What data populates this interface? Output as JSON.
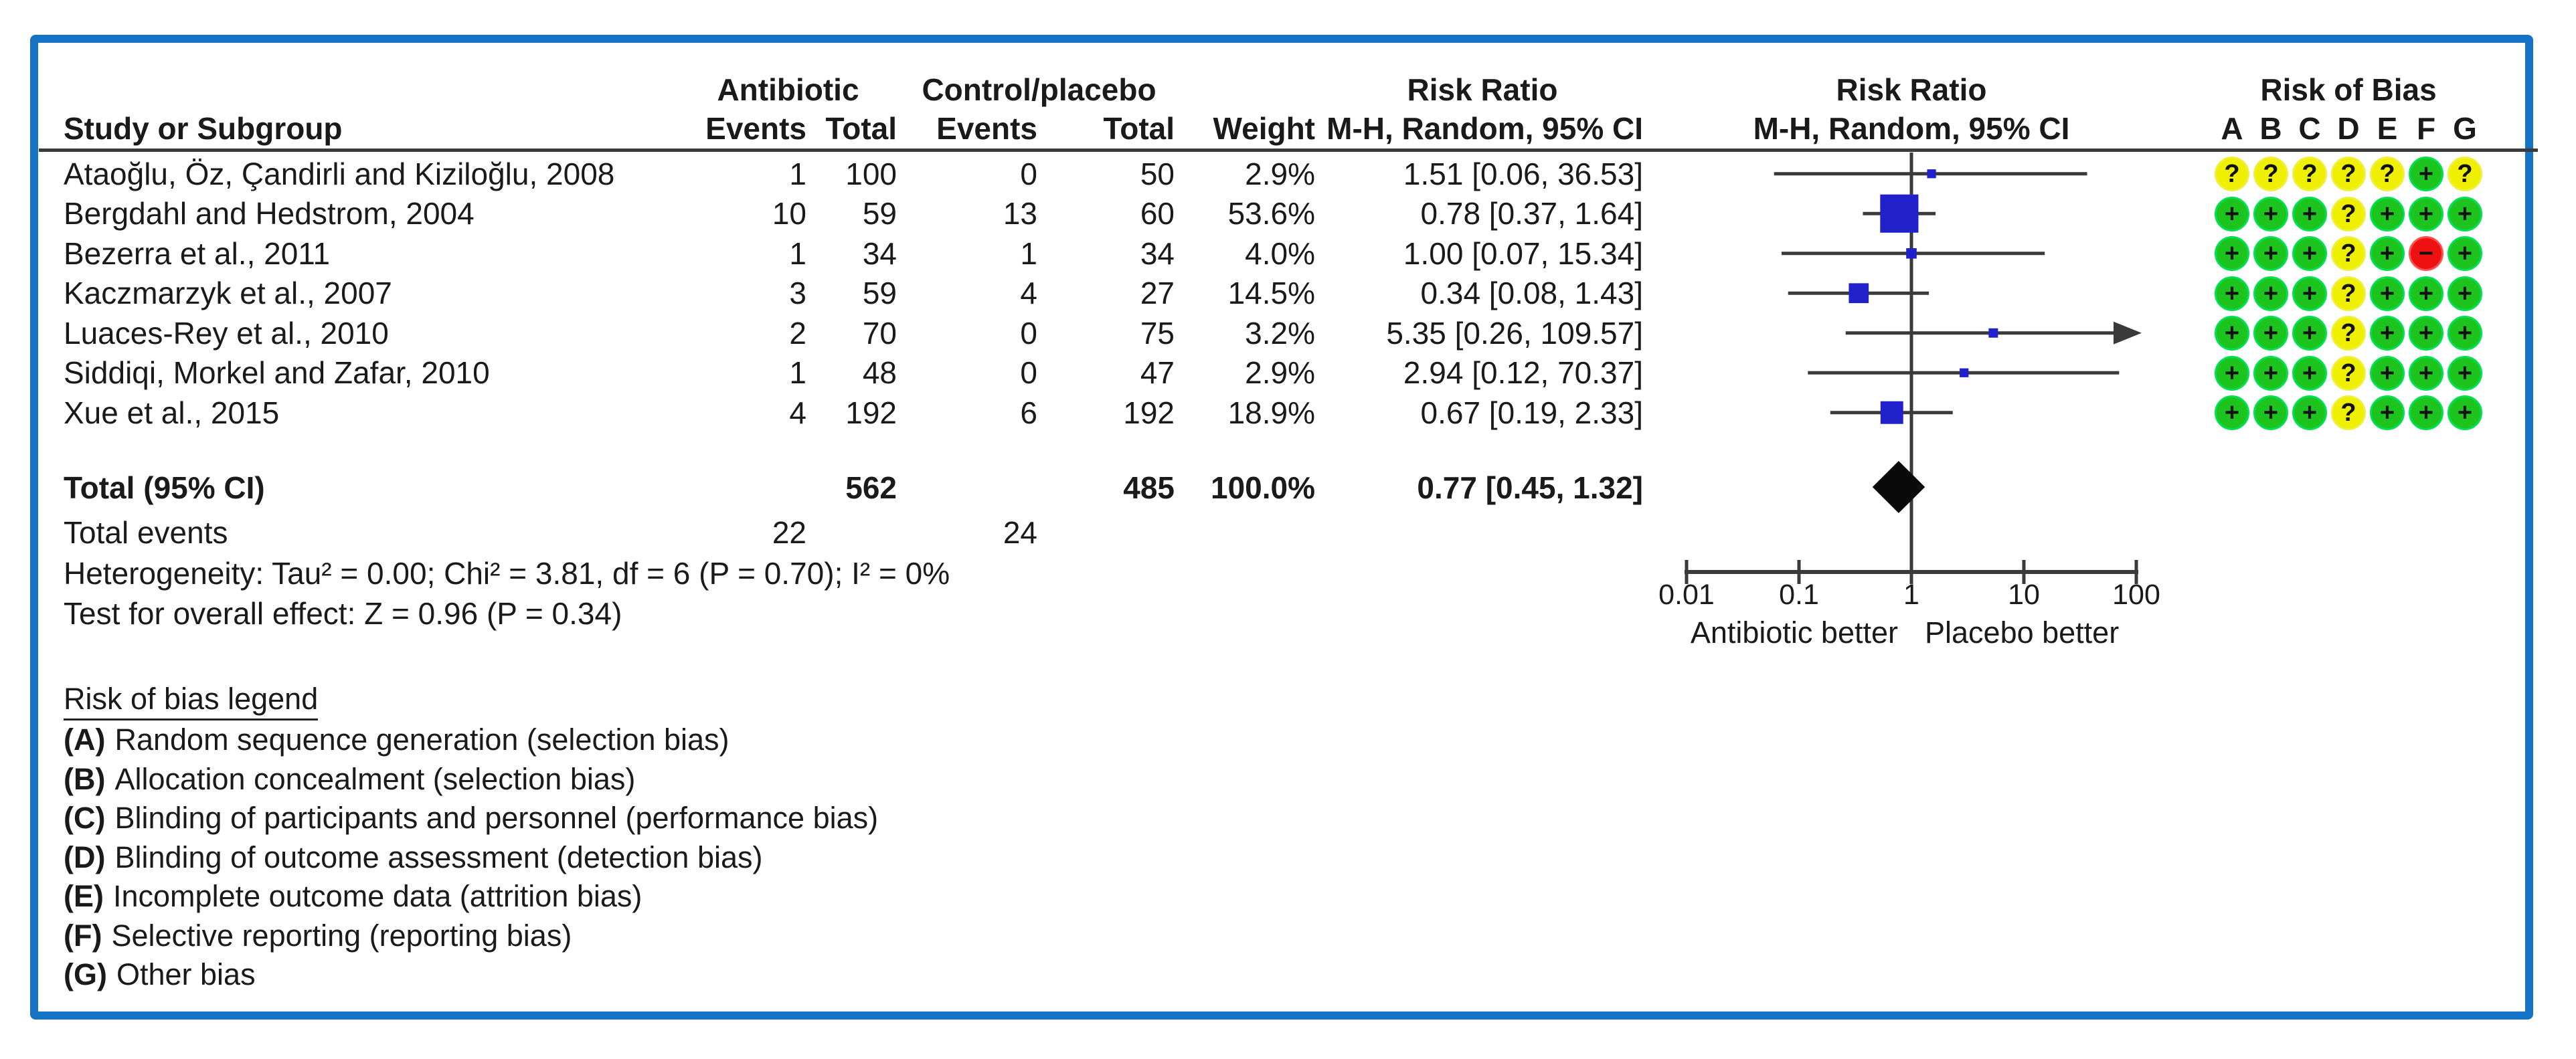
{
  "header": {
    "study_col": "Study or Subgroup",
    "group_antibiotic": "Antibiotic",
    "group_control": "Control/placebo",
    "events": "Events",
    "total": "Total",
    "weight": "Weight",
    "rr_text_title": "Risk Ratio",
    "rr_text_sub": "M-H, Random, 95% CI",
    "rr_plot_title": "Risk Ratio",
    "rr_plot_sub": "M-H, Random, 95% CI",
    "rob_title": "Risk of Bias",
    "rob_cols": [
      "A",
      "B",
      "C",
      "D",
      "E",
      "F",
      "G"
    ]
  },
  "studies": [
    {
      "name": "Ataoğlu, Öz, Çandirli and Kiziloğlu, 2008",
      "e1": "1",
      "t1": "100",
      "e2": "0",
      "t2": "50",
      "weight": "2.9%",
      "rr_text": "1.51 [0.06, 36.53]",
      "rob": [
        "?",
        "?",
        "?",
        "?",
        "?",
        "+",
        "?"
      ]
    },
    {
      "name": "Bergdahl and Hedstrom, 2004",
      "e1": "10",
      "t1": "59",
      "e2": "13",
      "t2": "60",
      "weight": "53.6%",
      "rr_text": "0.78 [0.37, 1.64]",
      "rob": [
        "+",
        "+",
        "+",
        "?",
        "+",
        "+",
        "+"
      ]
    },
    {
      "name": "Bezerra et al., 2011",
      "e1": "1",
      "t1": "34",
      "e2": "1",
      "t2": "34",
      "weight": "4.0%",
      "rr_text": "1.00 [0.07, 15.34]",
      "rob": [
        "+",
        "+",
        "+",
        "?",
        "+",
        "-",
        "+"
      ]
    },
    {
      "name": "Kaczmarzyk et al., 2007",
      "e1": "3",
      "t1": "59",
      "e2": "4",
      "t2": "27",
      "weight": "14.5%",
      "rr_text": "0.34 [0.08, 1.43]",
      "rob": [
        "+",
        "+",
        "+",
        "?",
        "+",
        "+",
        "+"
      ]
    },
    {
      "name": "Luaces-Rey et al., 2010",
      "e1": "2",
      "t1": "70",
      "e2": "0",
      "t2": "75",
      "weight": "3.2%",
      "rr_text": "5.35 [0.26, 109.57]",
      "rob": [
        "+",
        "+",
        "+",
        "?",
        "+",
        "+",
        "+"
      ]
    },
    {
      "name": "Siddiqi, Morkel and Zafar, 2010",
      "e1": "1",
      "t1": "48",
      "e2": "0",
      "t2": "47",
      "weight": "2.9%",
      "rr_text": "2.94 [0.12, 70.37]",
      "rob": [
        "+",
        "+",
        "+",
        "?",
        "+",
        "+",
        "+"
      ]
    },
    {
      "name": "Xue et al., 2015",
      "e1": "4",
      "t1": "192",
      "e2": "6",
      "t2": "192",
      "weight": "18.9%",
      "rr_text": "0.67 [0.19, 2.33]",
      "rob": [
        "+",
        "+",
        "+",
        "?",
        "+",
        "+",
        "+"
      ]
    }
  ],
  "totals": {
    "label": "Total (95% CI)",
    "t1": "562",
    "t2": "485",
    "weight": "100.0%",
    "rr_text": "0.77 [0.45, 1.32]",
    "events_label": "Total events",
    "e1": "22",
    "e2": "24",
    "heterogeneity": "Heterogeneity: Tau² = 0.00; Chi² = 3.81, df = 6 (P = 0.70); I² = 0%",
    "overall_effect": "Test for overall effect: Z = 0.96 (P = 0.34)"
  },
  "axis": {
    "ticks": [
      "0.01",
      "0.1",
      "1",
      "10",
      "100"
    ],
    "tick_values": [
      0.01,
      0.1,
      1,
      10,
      100
    ],
    "left_label": "Antibiotic better",
    "right_label": "Placebo better"
  },
  "legend": {
    "title": "Risk of bias legend",
    "items": [
      {
        "key": "(A)",
        "text": "Random sequence generation (selection bias)"
      },
      {
        "key": "(B)",
        "text": "Allocation concealment (selection bias)"
      },
      {
        "key": "(C)",
        "text": "Blinding of participants and personnel (performance bias)"
      },
      {
        "key": "(D)",
        "text": "Blinding of outcome assessment (detection bias)"
      },
      {
        "key": "(E)",
        "text": "Incomplete outcome data (attrition bias)"
      },
      {
        "key": "(F)",
        "text": "Selective reporting (reporting bias)"
      },
      {
        "key": "(G)",
        "text": "Other bias"
      }
    ]
  },
  "colors": {
    "frame_border": "#1572c4",
    "square": "#2121cc",
    "diamond": "#0a0a0a",
    "line": "#3a3a3a",
    "rob_yes": "#1ec41e",
    "rob_unclear": "#efef00",
    "rob_no": "#ee1111"
  },
  "chart_data": {
    "type": "scatter",
    "variant": "forest-plot",
    "title": "Risk Ratio M-H, Random, 95% CI",
    "x_scale": "log10",
    "xlim": [
      0.01,
      100
    ],
    "x_ticks": [
      0.01,
      0.1,
      1,
      10,
      100
    ],
    "x_left_label": "Antibiotic better",
    "x_right_label": "Placebo better",
    "studies": [
      {
        "name": "Ataoğlu, Öz, Çandirli and Kiziloğlu, 2008",
        "antibiotic_events": 1,
        "antibiotic_total": 100,
        "control_events": 0,
        "control_total": 50,
        "weight_pct": 2.9,
        "rr": 1.51,
        "ci_low": 0.06,
        "ci_high": 36.53
      },
      {
        "name": "Bergdahl and Hedstrom, 2004",
        "antibiotic_events": 10,
        "antibiotic_total": 59,
        "control_events": 13,
        "control_total": 60,
        "weight_pct": 53.6,
        "rr": 0.78,
        "ci_low": 0.37,
        "ci_high": 1.64
      },
      {
        "name": "Bezerra et al., 2011",
        "antibiotic_events": 1,
        "antibiotic_total": 34,
        "control_events": 1,
        "control_total": 34,
        "weight_pct": 4.0,
        "rr": 1.0,
        "ci_low": 0.07,
        "ci_high": 15.34
      },
      {
        "name": "Kaczmarzyk et al., 2007",
        "antibiotic_events": 3,
        "antibiotic_total": 59,
        "control_events": 4,
        "control_total": 27,
        "weight_pct": 14.5,
        "rr": 0.34,
        "ci_low": 0.08,
        "ci_high": 1.43
      },
      {
        "name": "Luaces-Rey et al., 2010",
        "antibiotic_events": 2,
        "antibiotic_total": 70,
        "control_events": 0,
        "control_total": 75,
        "weight_pct": 3.2,
        "rr": 5.35,
        "ci_low": 0.26,
        "ci_high": 109.57
      },
      {
        "name": "Siddiqi, Morkel and Zafar, 2010",
        "antibiotic_events": 1,
        "antibiotic_total": 48,
        "control_events": 0,
        "control_total": 47,
        "weight_pct": 2.9,
        "rr": 2.94,
        "ci_low": 0.12,
        "ci_high": 70.37
      },
      {
        "name": "Xue et al., 2015",
        "antibiotic_events": 4,
        "antibiotic_total": 192,
        "control_events": 6,
        "control_total": 192,
        "weight_pct": 18.9,
        "rr": 0.67,
        "ci_low": 0.19,
        "ci_high": 2.33
      }
    ],
    "pooled": {
      "label": "Total (95% CI)",
      "antibiotic_total": 562,
      "control_total": 485,
      "weight_pct": 100.0,
      "rr": 0.77,
      "ci_low": 0.45,
      "ci_high": 1.32,
      "total_events_antibiotic": 22,
      "total_events_control": 24
    },
    "heterogeneity": {
      "tau2": 0.0,
      "chi2": 3.81,
      "df": 6,
      "p": 0.7,
      "i2_pct": 0
    },
    "overall_effect": {
      "z": 0.96,
      "p": 0.34
    }
  }
}
